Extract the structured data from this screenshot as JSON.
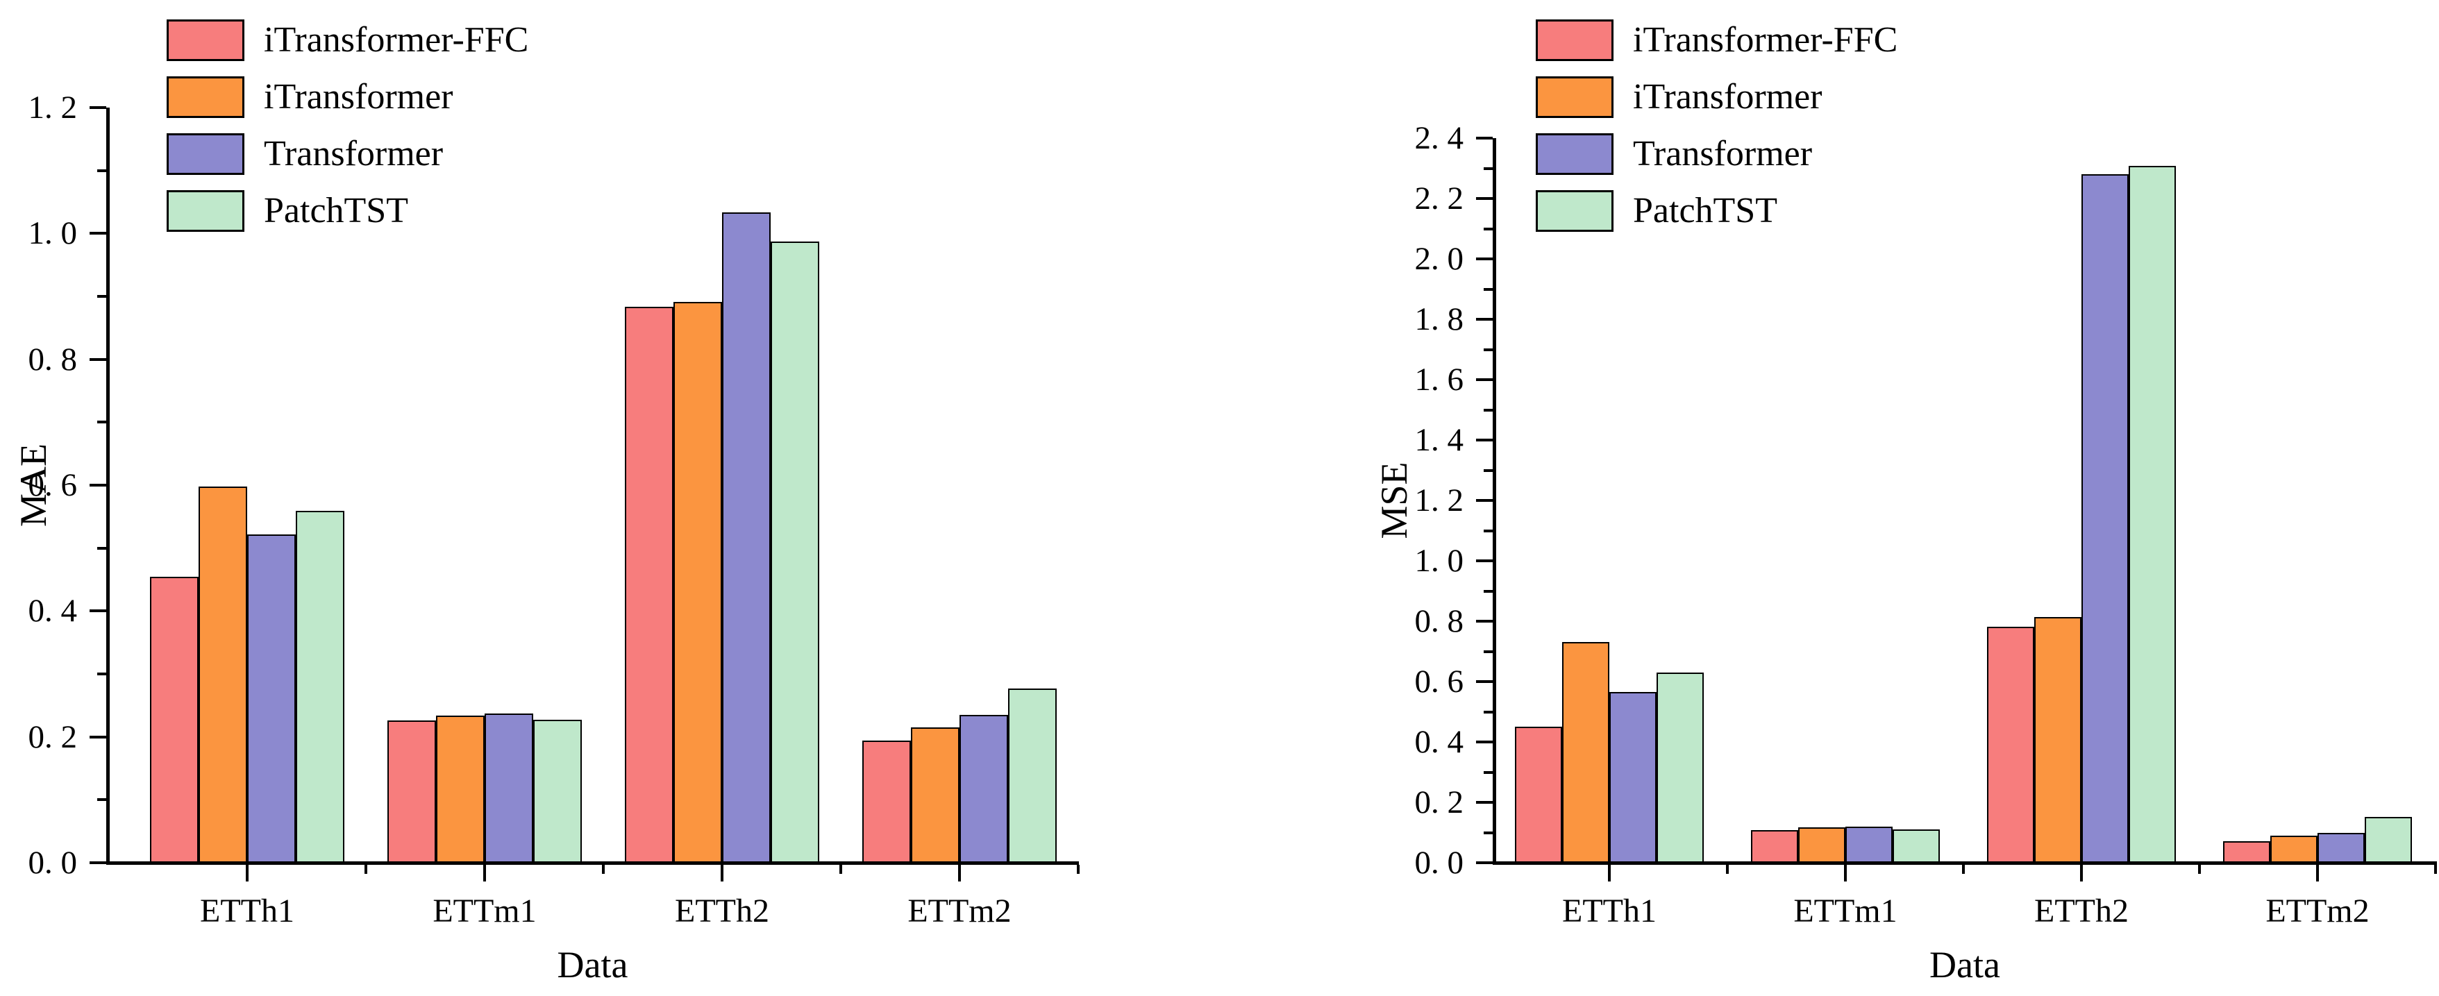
{
  "figure": {
    "background": "#ffffff",
    "text_color": "#000000",
    "axis_color": "#000000",
    "bar_border_color": "#000000"
  },
  "legend": {
    "position": "top-left",
    "entries": [
      "iTransformer-FFC",
      "iTransformer",
      "Transformer",
      "PatchTST"
    ],
    "colors": [
      "#F77D7D",
      "#FB9540",
      "#8C89CF",
      "#BFE8CB"
    ]
  },
  "chart_data": [
    {
      "type": "bar",
      "title": "",
      "xlabel": "Data",
      "ylabel": "MAE",
      "categories": [
        "ETTh1",
        "ETTm1",
        "ETTh2",
        "ETTm2"
      ],
      "series": [
        {
          "name": "iTransformer-FFC",
          "color": "#F77D7D",
          "values": [
            0.454,
            0.226,
            0.883,
            0.194
          ]
        },
        {
          "name": "iTransformer",
          "color": "#FB9540",
          "values": [
            0.598,
            0.234,
            0.891,
            0.215
          ]
        },
        {
          "name": "Transformer",
          "color": "#8C89CF",
          "values": [
            0.522,
            0.237,
            1.034,
            0.235
          ]
        },
        {
          "name": "PatchTST",
          "color": "#BFE8CB",
          "values": [
            0.559,
            0.227,
            0.987,
            0.277
          ]
        }
      ],
      "ylim": [
        0,
        1.2
      ],
      "ytick_step": 0.2,
      "yminor_step": 0.1,
      "ytick_labels": [
        "0. 0",
        "0. 2",
        "0. 4",
        "0. 6",
        "0. 8",
        "1. 0",
        "1. 2"
      ],
      "grid": false,
      "legend_position": "top-left"
    },
    {
      "type": "bar",
      "title": "",
      "xlabel": "Data",
      "ylabel": "MSE",
      "categories": [
        "ETTh1",
        "ETTm1",
        "ETTh2",
        "ETTm2"
      ],
      "series": [
        {
          "name": "iTransformer-FFC",
          "color": "#F77D7D",
          "values": [
            0.451,
            0.109,
            0.781,
            0.072
          ]
        },
        {
          "name": "iTransformer",
          "color": "#FB9540",
          "values": [
            0.731,
            0.118,
            0.813,
            0.09
          ]
        },
        {
          "name": "Transformer",
          "color": "#8C89CF",
          "values": [
            0.566,
            0.12,
            2.281,
            0.1
          ]
        },
        {
          "name": "PatchTST",
          "color": "#BFE8CB",
          "values": [
            0.63,
            0.11,
            2.309,
            0.152
          ]
        }
      ],
      "ylim": [
        0,
        2.4
      ],
      "ytick_step": 0.2,
      "yminor_step": 0.1,
      "ytick_labels": [
        "0. 0",
        "0. 2",
        "0. 4",
        "0. 6",
        "0. 8",
        "1. 0",
        "1. 2",
        "1. 4",
        "1. 6",
        "1. 8",
        "2. 0",
        "2. 2",
        "2. 4"
      ],
      "grid": false,
      "legend_position": "top-left"
    }
  ]
}
